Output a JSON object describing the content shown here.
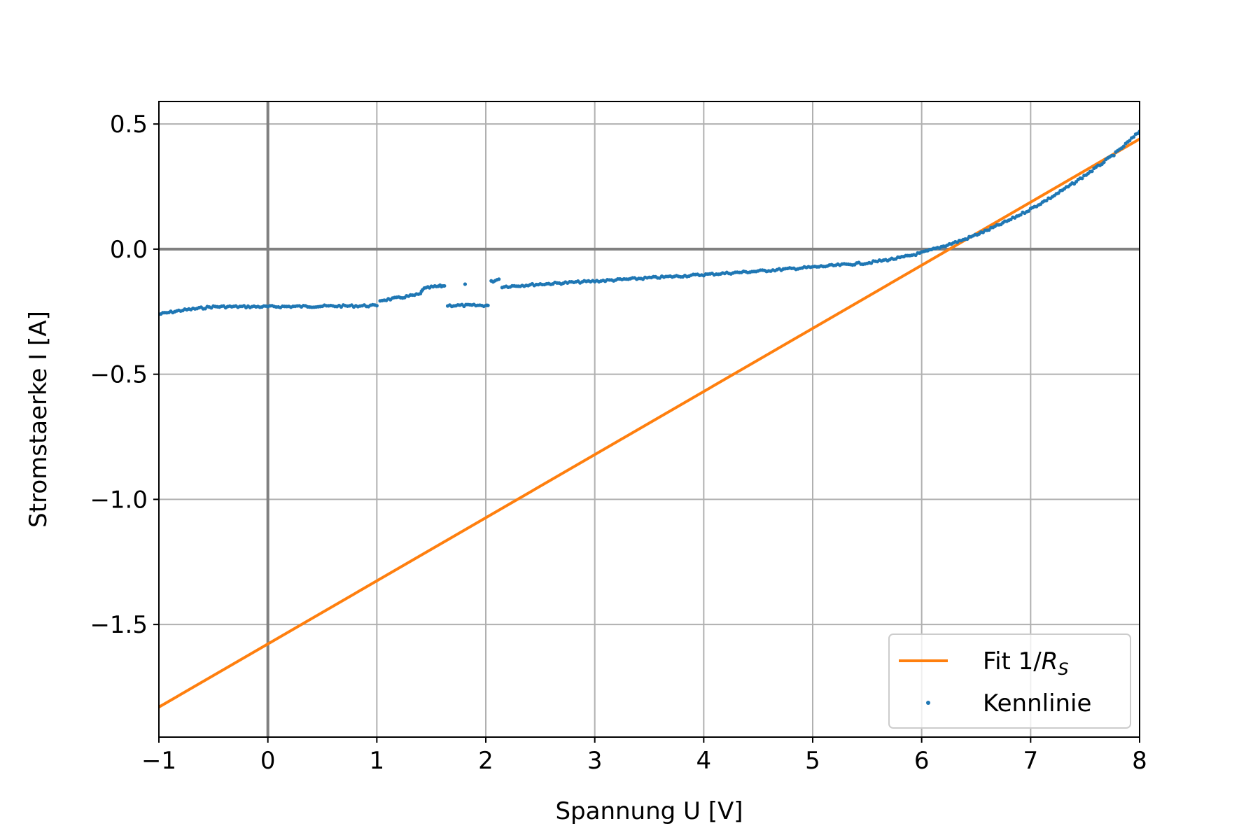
{
  "chart_data": {
    "type": "scatter",
    "xlabel": "Spannung U [V]",
    "ylabel": "Stromstaerke I [A]",
    "xlim": [
      -1,
      8
    ],
    "ylim": [
      -1.95,
      0.59
    ],
    "xticks": [
      -1,
      0,
      1,
      2,
      3,
      4,
      5,
      6,
      7,
      8
    ],
    "xtick_labels": [
      "−1",
      "0",
      "1",
      "2",
      "3",
      "4",
      "5",
      "6",
      "7",
      "8"
    ],
    "yticks": [
      0.5,
      0.0,
      -0.5,
      -1.0,
      -1.5
    ],
    "ytick_labels": [
      "0.5",
      "0.0",
      "−0.5",
      "−1.0",
      "−1.5"
    ],
    "grid": true,
    "zero_lines": true,
    "legend_position": "lower-right",
    "colors": {
      "kennlinie": "#1f77b4",
      "fit": "#ff7f0e",
      "grid": "#b0b0b0",
      "zero_line": "#808080"
    },
    "series": [
      {
        "name": "Fit 1/R_S",
        "legend_main": "Fit 1/",
        "legend_var": "R",
        "legend_sub": "S",
        "kind": "line",
        "x": [
          -1,
          8
        ],
        "y": [
          -1.83,
          0.44
        ]
      },
      {
        "name": "Kennlinie",
        "kind": "scatter",
        "segments": [
          {
            "x": [
              -1.0,
              -0.8,
              -0.5,
              -0.2,
              0.0,
              0.5,
              1.0
            ],
            "y": [
              -0.26,
              -0.245,
              -0.23,
              -0.23,
              -0.23,
              -0.228,
              -0.226
            ]
          },
          {
            "x": [
              1.03,
              1.2,
              1.4,
              1.42,
              1.5,
              1.58,
              1.62
            ],
            "y": [
              -0.205,
              -0.195,
              -0.18,
              -0.16,
              -0.152,
              -0.148,
              -0.147
            ]
          },
          {
            "x": [
              1.65,
              1.8,
              2.0,
              2.02
            ],
            "y": [
              -0.225,
              -0.225,
              -0.225,
              -0.225
            ]
          },
          {
            "x": [
              1.81
            ],
            "y": [
              -0.14
            ]
          },
          {
            "x": [
              2.05,
              2.12
            ],
            "y": [
              -0.13,
              -0.12
            ]
          },
          {
            "x": [
              2.15,
              2.5,
              3.0,
              3.5,
              4.0,
              4.5,
              5.0,
              5.5,
              5.8,
              6.0,
              6.2,
              6.4,
              6.6,
              6.8,
              7.0,
              7.2,
              7.4,
              7.6,
              7.8,
              8.0
            ],
            "y": [
              -0.15,
              -0.14,
              -0.128,
              -0.115,
              -0.102,
              -0.088,
              -0.072,
              -0.055,
              -0.035,
              -0.015,
              0.012,
              0.04,
              0.075,
              0.115,
              0.16,
              0.21,
              0.265,
              0.325,
              0.39,
              0.47
            ]
          }
        ]
      }
    ]
  }
}
